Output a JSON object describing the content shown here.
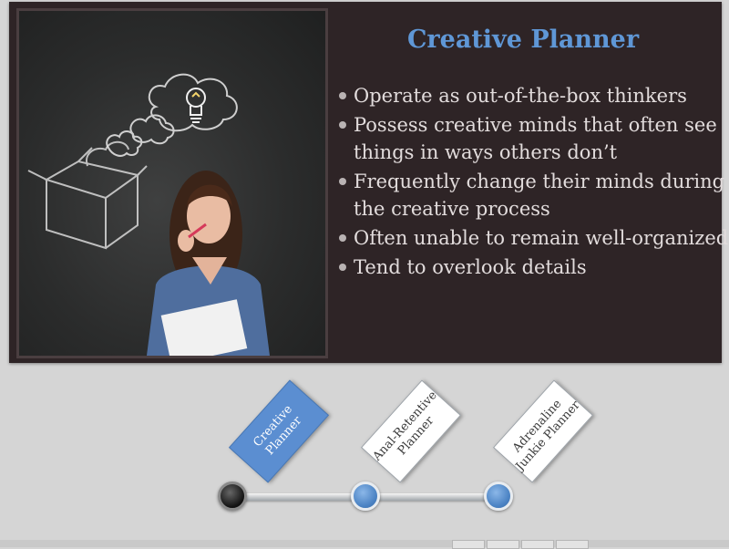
{
  "slide": {
    "title": "Creative Planner",
    "bullets": [
      "Operate as out-of-the-box thinkers",
      "Possess creative minds that often see things in ways others don’t",
      "Frequently change their minds during the creative process",
      "Often unable to remain well-organized",
      "Tend to overlook details"
    ],
    "photo_icon": "woman-thinking-chalkboard-image"
  },
  "timeline": {
    "cards": [
      {
        "label": "Creative Planner",
        "selected": true
      },
      {
        "label": "Anal-Retentive Planner",
        "selected": false
      },
      {
        "label": "Adrenaline Junkie Planner",
        "selected": false
      }
    ],
    "colors": {
      "accent": "#5b8ed1",
      "title": "#5f97d6",
      "panel": "#2e2426"
    }
  }
}
